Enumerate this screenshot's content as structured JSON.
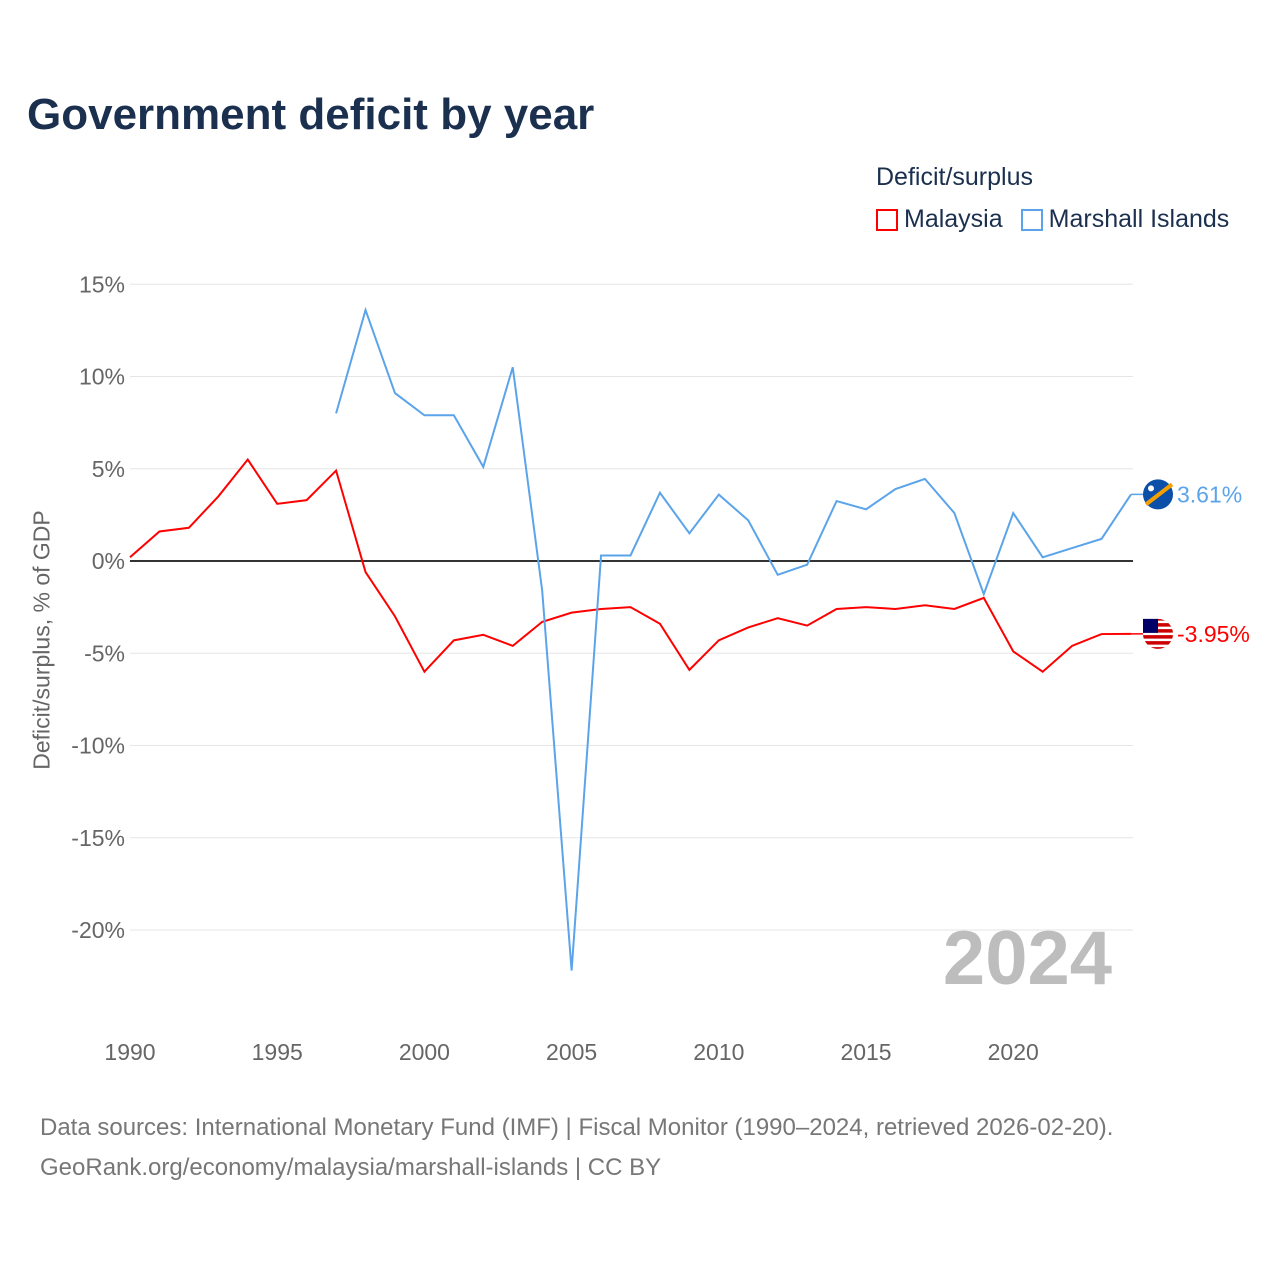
{
  "title": "Government deficit by year",
  "legend": {
    "title": "Deficit/surplus",
    "items": [
      "Malaysia",
      "Marshall Islands"
    ]
  },
  "year_watermark": "2024",
  "source_line1": "Data sources: International Monetary Fund (IMF) | Fiscal Monitor (1990–2024, retrieved 2026-02-20).",
  "source_line2": "GeoRank.org/economy/malaysia/marshall-islands | CC BY",
  "chart_data": {
    "type": "line",
    "title": "Government deficit by year",
    "xlabel": "",
    "ylabel": "Deficit/surplus, % of GDP",
    "xlim": [
      1990,
      2024
    ],
    "ylim": [
      -24,
      15
    ],
    "yticks": [
      15,
      10,
      5,
      0,
      -5,
      -10,
      -15,
      -20
    ],
    "ytick_labels": [
      "15%",
      "10%",
      "5%",
      "0%",
      "-5%",
      "-10%",
      "-15%",
      "-20%"
    ],
    "xticks": [
      1990,
      1995,
      2000,
      2005,
      2010,
      2015,
      2020
    ],
    "grid": true,
    "legend_position": "top-right",
    "series": [
      {
        "name": "Malaysia",
        "color": "#ff0000",
        "end_label": "-3.95%",
        "x": [
          1990,
          1991,
          1992,
          1993,
          1994,
          1995,
          1996,
          1997,
          1998,
          1999,
          2000,
          2001,
          2002,
          2003,
          2004,
          2005,
          2006,
          2007,
          2008,
          2009,
          2010,
          2011,
          2012,
          2013,
          2014,
          2015,
          2016,
          2017,
          2018,
          2019,
          2020,
          2021,
          2022,
          2023,
          2024
        ],
        "values": [
          0.2,
          1.6,
          1.8,
          3.5,
          5.5,
          3.1,
          3.3,
          4.9,
          -0.6,
          -3.0,
          -6.0,
          -4.3,
          -4.0,
          -4.6,
          -3.3,
          -2.8,
          -2.6,
          -2.5,
          -3.4,
          -5.9,
          -4.3,
          -3.6,
          -3.1,
          -3.5,
          -2.6,
          -2.5,
          -2.6,
          -2.4,
          -2.6,
          -2.0,
          -4.9,
          -6.0,
          -4.6,
          -3.96,
          -3.95
        ]
      },
      {
        "name": "Marshall Islands",
        "color": "#5ba4ea",
        "end_label": "3.61%",
        "x": [
          1997,
          1998,
          1999,
          2000,
          2001,
          2002,
          2003,
          2004,
          2005,
          2006,
          2007,
          2008,
          2009,
          2010,
          2011,
          2012,
          2013,
          2014,
          2015,
          2016,
          2017,
          2018,
          2019,
          2020,
          2021,
          2022,
          2023,
          2024
        ],
        "values": [
          8.0,
          13.6,
          9.1,
          7.9,
          7.9,
          5.1,
          10.5,
          -1.6,
          -22.2,
          0.3,
          0.3,
          3.7,
          1.5,
          3.6,
          2.2,
          -0.75,
          -0.2,
          3.25,
          2.8,
          3.9,
          4.45,
          2.6,
          -1.8,
          2.6,
          0.2,
          0.7,
          1.2,
          3.61
        ]
      }
    ]
  }
}
